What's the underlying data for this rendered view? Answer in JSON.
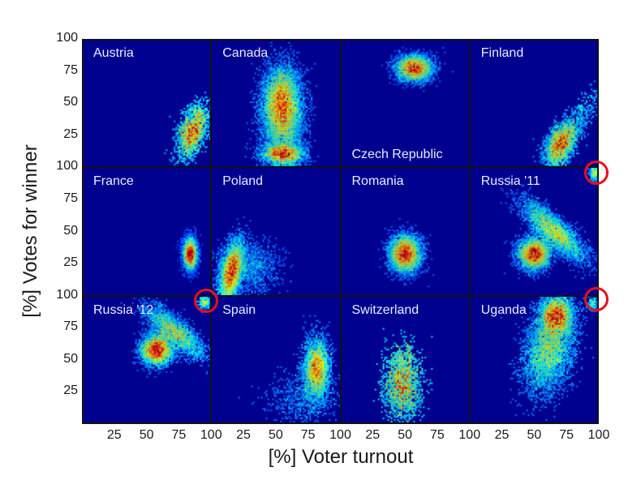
{
  "chart_data": {
    "type": "heatmap",
    "title": "",
    "xlabel": "[%] Voter turnout",
    "ylabel": "[%] Votes for winner",
    "xlim": [
      0,
      100
    ],
    "ylim": [
      0,
      100
    ],
    "xticks": [
      "25",
      "50",
      "75",
      "100"
    ],
    "yticks": [
      "25",
      "50",
      "75",
      "100"
    ],
    "layout": {
      "rows": 3,
      "cols": 4
    },
    "colormap": "jet",
    "background_color": "#00008f",
    "panels": [
      {
        "country": "Austria",
        "label_pos": "top-left",
        "clusters": [
          {
            "x": 86,
            "y": 28,
            "sx": 5,
            "sy": 11,
            "n": 1800,
            "rot": -0.3
          }
        ]
      },
      {
        "country": "Canada",
        "label_pos": "top-left",
        "clusters": [
          {
            "x": 55,
            "y": 50,
            "sx": 7,
            "sy": 14,
            "n": 6000,
            "rot": 0
          },
          {
            "x": 56,
            "y": 33,
            "sx": 8,
            "sy": 18,
            "n": 3500,
            "rot": 0
          },
          {
            "x": 56,
            "y": 10,
            "sx": 8,
            "sy": 4,
            "n": 2500,
            "rot": 0
          }
        ]
      },
      {
        "country": "Czech Republic",
        "label_pos": "bottom-center",
        "clusters": [
          {
            "x": 57,
            "y": 77,
            "sx": 7,
            "sy": 5,
            "n": 4000,
            "rot": 0
          }
        ]
      },
      {
        "country": "Finland",
        "label_pos": "top-left",
        "clusters": [
          {
            "x": 70,
            "y": 17,
            "sx": 5,
            "sy": 9,
            "n": 2200,
            "rot": -0.4
          },
          {
            "x": 82,
            "y": 35,
            "sx": 5,
            "sy": 14,
            "n": 500,
            "rot": -0.6
          }
        ]
      },
      {
        "country": "France",
        "label_pos": "top-left",
        "clusters": [
          {
            "x": 84,
            "y": 32,
            "sx": 2.6,
            "sy": 6,
            "n": 3500,
            "rot": 0
          }
        ]
      },
      {
        "country": "Poland",
        "label_pos": "top-left",
        "clusters": [
          {
            "x": 16,
            "y": 18,
            "sx": 4,
            "sy": 12,
            "n": 5000,
            "rot": -0.2
          },
          {
            "x": 28,
            "y": 22,
            "sx": 12,
            "sy": 10,
            "n": 1500,
            "rot": 0
          }
        ]
      },
      {
        "country": "Romania",
        "label_pos": "top-left",
        "clusters": [
          {
            "x": 50,
            "y": 32,
            "sx": 6,
            "sy": 7,
            "n": 5000,
            "rot": 0
          }
        ]
      },
      {
        "country": "Russia '11",
        "label_pos": "top-left",
        "clusters": [
          {
            "x": 50,
            "y": 32,
            "sx": 6,
            "sy": 6,
            "n": 4000,
            "rot": 0
          },
          {
            "x": 65,
            "y": 50,
            "sx": 16,
            "sy": 5,
            "n": 4000,
            "rot": -0.75
          },
          {
            "x": 97,
            "y": 95,
            "sx": 2,
            "sy": 3,
            "n": 300,
            "rot": 0
          }
        ],
        "highlight": {
          "x": 98,
          "y": 96
        }
      },
      {
        "country": "Russia '12",
        "label_pos": "top-left",
        "clusters": [
          {
            "x": 58,
            "y": 58,
            "sx": 6,
            "sy": 6,
            "n": 4000,
            "rot": 0
          },
          {
            "x": 72,
            "y": 72,
            "sx": 14,
            "sy": 5,
            "n": 3000,
            "rot": -0.7
          },
          {
            "x": 95,
            "y": 95,
            "sx": 2.5,
            "sy": 3,
            "n": 300,
            "rot": 0
          }
        ],
        "highlight": {
          "x": 96,
          "y": 96
        }
      },
      {
        "country": "Spain",
        "label_pos": "top-left",
        "clusters": [
          {
            "x": 82,
            "y": 43,
            "sx": 5,
            "sy": 12,
            "n": 3500,
            "rot": 0
          },
          {
            "x": 70,
            "y": 20,
            "sx": 14,
            "sy": 10,
            "n": 600,
            "rot": 0
          }
        ]
      },
      {
        "country": "Switzerland",
        "label_pos": "top-left",
        "clusters": [
          {
            "x": 48,
            "y": 32,
            "sx": 7,
            "sy": 15,
            "n": 1800,
            "rot": 0
          }
        ]
      },
      {
        "country": "Uganda",
        "label_pos": "top-left",
        "clusters": [
          {
            "x": 67,
            "y": 85,
            "sx": 6,
            "sy": 7,
            "n": 3000,
            "rot": 0
          },
          {
            "x": 62,
            "y": 60,
            "sx": 9,
            "sy": 18,
            "n": 5000,
            "rot": -0.25
          },
          {
            "x": 95,
            "y": 94,
            "sx": 2,
            "sy": 3,
            "n": 120,
            "rot": 0
          }
        ],
        "highlight": {
          "x": 98,
          "y": 97
        }
      }
    ]
  },
  "axis": {
    "ylabel": "[%] Votes for winner",
    "xlabel": "[%] Voter turnout",
    "yticks": [
      "100",
      "75",
      "50",
      "25"
    ],
    "xticks": [
      "25",
      "50",
      "75",
      "100"
    ]
  }
}
